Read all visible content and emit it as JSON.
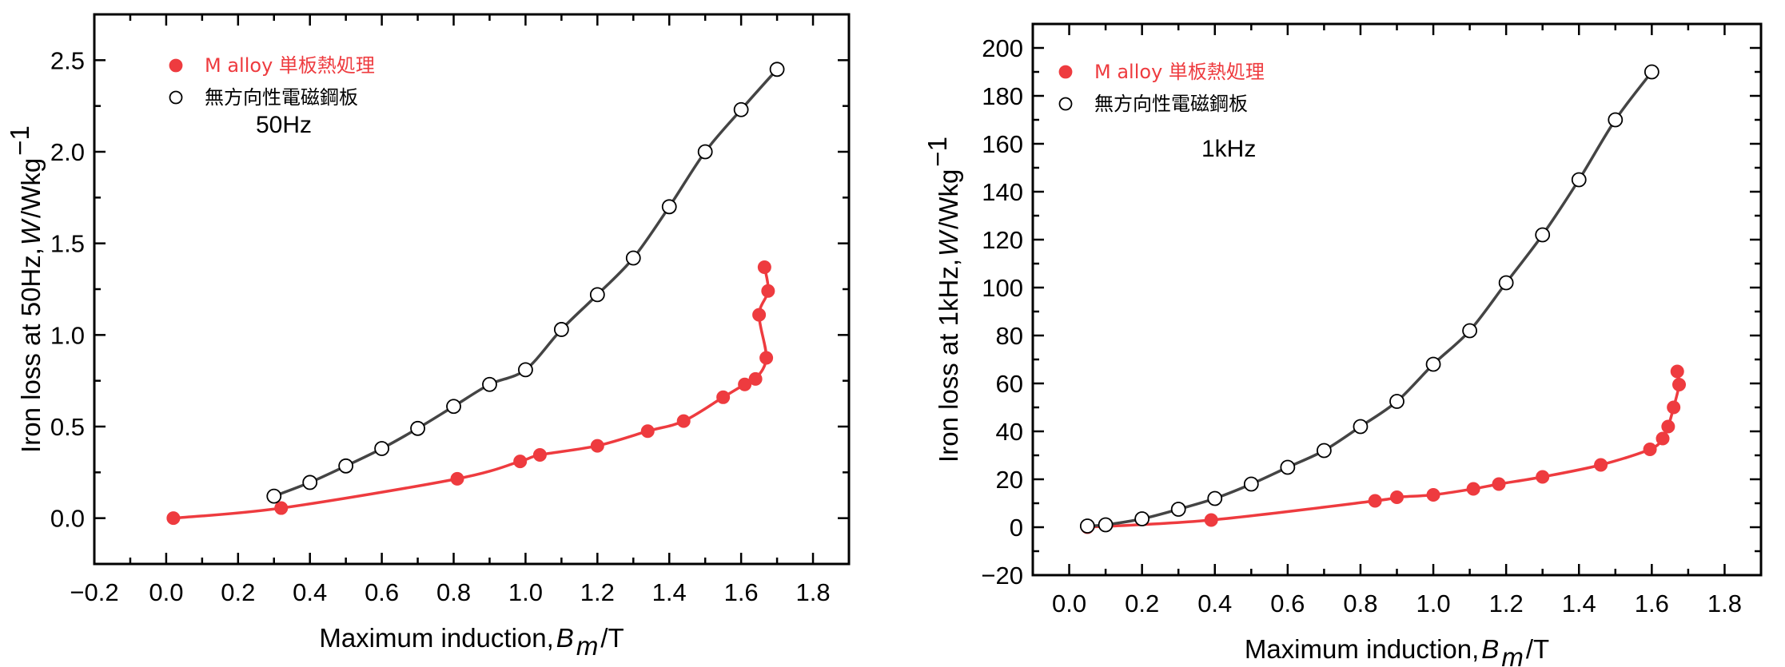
{
  "chart_data": [
    {
      "type": "line",
      "title": "",
      "xlabel": {
        "prefix": "Maximum induction, ",
        "var": "B",
        "sub": "m",
        "suffix": " /T"
      },
      "ylabel": {
        "prefix": "Iron loss at 50Hz, ",
        "var": "W",
        "suffix": " /Wkg",
        "sup": "−1"
      },
      "annotation": "50Hz",
      "xlim": [
        -0.2,
        1.9
      ],
      "ylim": [
        -0.25,
        2.75
      ],
      "xticks": [
        -0.2,
        0.0,
        0.2,
        0.4,
        0.6,
        0.8,
        1.0,
        1.2,
        1.4,
        1.6,
        1.8
      ],
      "xtick_labels": [
        "−0.2",
        "0.0",
        "0.2",
        "0.4",
        "0.6",
        "0.8",
        "1.0",
        "1.2",
        "1.4",
        "1.6",
        "1.8"
      ],
      "xminor": 0.1,
      "yticks": [
        0.0,
        0.5,
        1.0,
        1.5,
        2.0,
        2.5
      ],
      "ytick_labels": [
        "0.0",
        "0.5",
        "1.0",
        "1.5",
        "2.0",
        "2.5"
      ],
      "yminor": 0.25,
      "legend_position": "top-left",
      "series": [
        {
          "name": "M alloy 単板熱処理",
          "color": "#ee3b3f",
          "marker": "filled-circle",
          "x": [
            0.02,
            0.32,
            0.81,
            0.985,
            1.04,
            1.2,
            1.34,
            1.44,
            1.55,
            1.61,
            1.64,
            1.67,
            1.675,
            1.65,
            1.665
          ],
          "y": [
            0.0,
            0.055,
            0.215,
            0.31,
            0.345,
            0.395,
            0.475,
            0.53,
            0.66,
            0.73,
            0.76,
            0.875,
            1.24,
            1.11,
            1.37
          ],
          "curve_order": [
            0,
            1,
            2,
            3,
            4,
            5,
            6,
            7,
            8,
            9,
            10,
            11,
            13,
            12,
            14
          ]
        },
        {
          "name": "無方向性電磁鋼板",
          "color": "#444444",
          "marker": "open-circle",
          "x": [
            0.3,
            0.4,
            0.5,
            0.6,
            0.7,
            0.8,
            0.9,
            1.0,
            1.1,
            1.2,
            1.3,
            1.4,
            1.5,
            1.6,
            1.7
          ],
          "y": [
            0.12,
            0.195,
            0.285,
            0.38,
            0.49,
            0.61,
            0.73,
            0.81,
            1.03,
            1.22,
            1.42,
            1.7,
            2.0,
            2.23,
            2.45
          ]
        }
      ]
    },
    {
      "type": "line",
      "title": "",
      "xlabel": {
        "prefix": "Maximum induction, ",
        "var": "B",
        "sub": "m",
        "suffix": " /T"
      },
      "ylabel": {
        "prefix": "Iron loss at 1kHz, ",
        "var": "W",
        "suffix": " /Wkg",
        "sup": "−1"
      },
      "annotation": "1kHz",
      "xlim": [
        -0.1,
        1.9
      ],
      "ylim": [
        -20,
        210
      ],
      "xticks": [
        0.0,
        0.2,
        0.4,
        0.6,
        0.8,
        1.0,
        1.2,
        1.4,
        1.6,
        1.8
      ],
      "xtick_labels": [
        "0.0",
        "0.2",
        "0.4",
        "0.6",
        "0.8",
        "1.0",
        "1.2",
        "1.4",
        "1.6",
        "1.8"
      ],
      "xminor": 0.1,
      "yticks": [
        -20,
        0,
        20,
        40,
        60,
        80,
        100,
        120,
        140,
        160,
        180,
        200
      ],
      "ytick_labels": [
        "−20",
        "0",
        "20",
        "40",
        "60",
        "80",
        "100",
        "120",
        "140",
        "160",
        "180",
        "200"
      ],
      "yminor": 10,
      "legend_position": "top-left",
      "series": [
        {
          "name": "M alloy 単板熱処理",
          "color": "#ee3b3f",
          "marker": "filled-circle",
          "x": [
            0.05,
            0.39,
            0.84,
            0.9,
            1.0,
            1.11,
            1.18,
            1.3,
            1.46,
            1.595,
            1.63,
            1.645,
            1.66,
            1.675,
            1.67
          ],
          "y": [
            0.0,
            3.0,
            11.0,
            12.5,
            13.5,
            16.0,
            18.0,
            21.0,
            26.0,
            32.5,
            37.0,
            42.0,
            50.0,
            59.5,
            65.0
          ]
        },
        {
          "name": "無方向性電磁鋼板",
          "color": "#444444",
          "marker": "open-circle",
          "x": [
            0.05,
            0.1,
            0.2,
            0.3,
            0.4,
            0.5,
            0.6,
            0.7,
            0.8,
            0.9,
            1.0,
            1.1,
            1.2,
            1.3,
            1.4,
            1.5,
            1.6
          ],
          "y": [
            0.5,
            1.0,
            3.5,
            7.5,
            12.0,
            18.0,
            25.0,
            32.0,
            42.0,
            52.5,
            68.0,
            82.0,
            102.0,
            122.0,
            145.0,
            170.0,
            190.0
          ]
        }
      ]
    }
  ]
}
